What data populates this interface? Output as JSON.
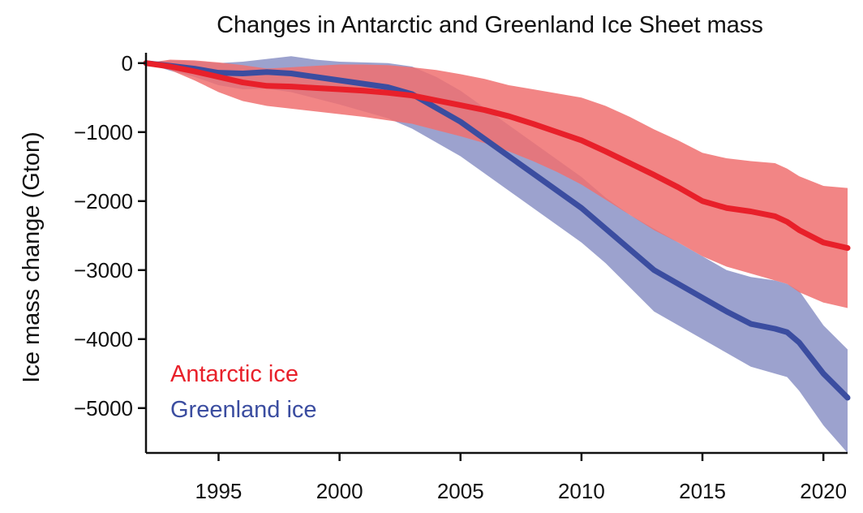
{
  "chart_data": {
    "type": "area",
    "title": "Changes in Antarctic and Greenland Ice Sheet mass",
    "xlabel": "",
    "ylabel": "Ice mass change (Gton)",
    "xlim": [
      1992,
      2021
    ],
    "ylim": [
      -5650,
      150
    ],
    "xticks": [
      1995,
      2000,
      2005,
      2010,
      2015,
      2020
    ],
    "yticks": [
      0,
      -1000,
      -2000,
      -3000,
      -4000,
      -5000
    ],
    "ytick_labels": [
      "0",
      "−1000",
      "−2000",
      "−3000",
      "−4000",
      "−5000"
    ],
    "grid": false,
    "legend": {
      "placement": "bottom-left",
      "entries": [
        {
          "label": "Antarctic ice",
          "color": "#e8202a"
        },
        {
          "label": "Greenland ice",
          "color": "#3b4da0"
        }
      ]
    },
    "x": [
      1992,
      1993,
      1994,
      1995,
      1996,
      1997,
      1998,
      1999,
      2000,
      2001,
      2002,
      2003,
      2004,
      2005,
      2006,
      2007,
      2008,
      2009,
      2010,
      2011,
      2012,
      2013,
      2014,
      2015,
      2016,
      2017,
      2018,
      2018.5,
      2019,
      2020,
      2021
    ],
    "series": [
      {
        "name": "Greenland ice",
        "line_color": "#3b4da0",
        "band_color": "#8b92c6",
        "values": [
          0,
          -40,
          -80,
          -140,
          -150,
          -130,
          -150,
          -200,
          -250,
          -300,
          -350,
          -450,
          -650,
          -850,
          -1100,
          -1350,
          -1600,
          -1850,
          -2100,
          -2400,
          -2700,
          -3000,
          -3200,
          -3400,
          -3600,
          -3780,
          -3850,
          -3900,
          -4050,
          -4500,
          -4850
        ],
        "lower": [
          0,
          -110,
          -200,
          -320,
          -380,
          -370,
          -420,
          -510,
          -600,
          -700,
          -800,
          -950,
          -1150,
          -1350,
          -1600,
          -1850,
          -2100,
          -2350,
          -2600,
          -2900,
          -3250,
          -3600,
          -3800,
          -4000,
          -4200,
          -4400,
          -4500,
          -4550,
          -4750,
          -5250,
          -5650
        ],
        "upper": [
          0,
          40,
          30,
          0,
          20,
          60,
          100,
          50,
          20,
          10,
          0,
          -50,
          -200,
          -400,
          -650,
          -900,
          -1150,
          -1400,
          -1650,
          -1950,
          -2200,
          -2400,
          -2600,
          -2800,
          -3000,
          -3100,
          -3150,
          -3200,
          -3300,
          -3800,
          -4150
        ]
      },
      {
        "name": "Antarctic ice",
        "line_color": "#e8202a",
        "band_color": "#f07070",
        "values": [
          0,
          -50,
          -120,
          -200,
          -280,
          -330,
          -340,
          -360,
          -380,
          -400,
          -430,
          -470,
          -540,
          -610,
          -680,
          -770,
          -880,
          -1000,
          -1120,
          -1280,
          -1450,
          -1620,
          -1800,
          -2000,
          -2100,
          -2150,
          -2220,
          -2300,
          -2420,
          -2600,
          -2680
        ],
        "lower": [
          0,
          -100,
          -250,
          -420,
          -550,
          -620,
          -660,
          -700,
          -740,
          -780,
          -830,
          -880,
          -970,
          -1060,
          -1160,
          -1280,
          -1420,
          -1580,
          -1760,
          -1980,
          -2200,
          -2420,
          -2600,
          -2800,
          -2950,
          -3050,
          -3150,
          -3200,
          -3320,
          -3470,
          -3550
        ],
        "upper": [
          0,
          50,
          40,
          10,
          -30,
          -80,
          -60,
          -40,
          -20,
          -20,
          -30,
          -60,
          -100,
          -160,
          -230,
          -320,
          -380,
          -440,
          -500,
          -620,
          -780,
          -960,
          -1120,
          -1300,
          -1380,
          -1420,
          -1450,
          -1530,
          -1640,
          -1780,
          -1810
        ]
      }
    ]
  }
}
